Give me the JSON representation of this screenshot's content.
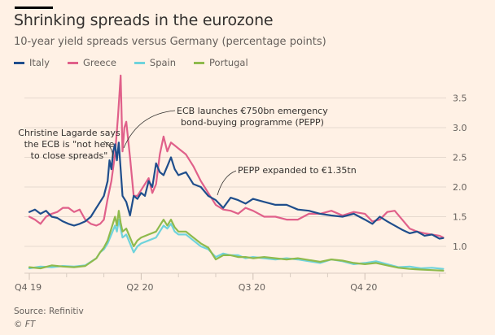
{
  "header": {
    "title": "Shrinking spreads in the eurozone",
    "subtitle": "10-year yield spreads versus Germany (percentage points)"
  },
  "legend": [
    {
      "name": "Italy",
      "color": "#1f4e8c"
    },
    {
      "name": "Greece",
      "color": "#e0608a"
    },
    {
      "name": "Spain",
      "color": "#6fd3dc"
    },
    {
      "name": "Portugal",
      "color": "#8fba4c"
    }
  ],
  "footer": {
    "source": "Source: Refinitiv",
    "copyright": "© FT"
  },
  "chart_data": {
    "type": "line",
    "title": "Shrinking spreads in the eurozone",
    "subtitle": "10-year yield spreads versus Germany (percentage points)",
    "xlabel": "",
    "ylabel": "",
    "x_unit": "months (tick positions)",
    "xlim": [
      -0.05,
      11.15
    ],
    "ylim": [
      0.6,
      3.9
    ],
    "y_ticks": [
      1.0,
      1.5,
      2.0,
      2.5,
      3.0,
      3.5
    ],
    "y_tick_labels": [
      "1.0",
      "1.5",
      "2.0",
      "2.5",
      "3.0",
      "3.5"
    ],
    "y_axis_side": "right",
    "grid": true,
    "legend_position": "top-left",
    "x_major_ticks": [
      {
        "x": 0,
        "label": "Q4 19"
      },
      {
        "x": 3,
        "label": "Q2 20"
      },
      {
        "x": 6,
        "label": "Q3 20"
      },
      {
        "x": 9,
        "label": "Q4 20"
      }
    ],
    "x_minor_ticks": [
      1,
      2,
      4,
      5,
      7,
      8,
      10,
      11
    ],
    "annotations": [
      {
        "text": [
          "Christine Lagarde says",
          "the ECB is \"not here",
          "to close spreads\""
        ],
        "x": 2.28,
        "y": 2.55
      },
      {
        "text": [
          "ECB launches €750bn emergency",
          "bond-buying programme (PEPP)"
        ],
        "x": 2.55,
        "y": 2.55
      },
      {
        "text": [
          "PEPP expanded to €1.35tn"
        ],
        "x": 5.1,
        "y": 1.75
      }
    ],
    "series": [
      {
        "name": "Italy",
        "color": "#1f4e8c",
        "x": [
          0,
          0.15,
          0.3,
          0.45,
          0.6,
          0.75,
          0.9,
          1.05,
          1.2,
          1.35,
          1.5,
          1.65,
          1.8,
          1.9,
          2.0,
          2.1,
          2.15,
          2.2,
          2.25,
          2.3,
          2.35,
          2.4,
          2.45,
          2.5,
          2.6,
          2.7,
          2.8,
          2.9,
          3.0,
          3.1,
          3.2,
          3.3,
          3.4,
          3.5,
          3.6,
          3.7,
          3.8,
          3.9,
          4.0,
          4.2,
          4.4,
          4.6,
          4.8,
          5.0,
          5.2,
          5.4,
          5.6,
          5.8,
          6.0,
          6.3,
          6.6,
          6.9,
          7.2,
          7.5,
          7.8,
          8.1,
          8.4,
          8.7,
          9.0,
          9.2,
          9.4,
          9.6,
          9.8,
          10.0,
          10.2,
          10.4,
          10.6,
          10.8,
          11.0,
          11.1
        ],
        "values": [
          1.58,
          1.62,
          1.55,
          1.6,
          1.5,
          1.48,
          1.42,
          1.38,
          1.35,
          1.38,
          1.42,
          1.5,
          1.65,
          1.75,
          1.85,
          2.1,
          2.45,
          2.3,
          2.6,
          2.72,
          2.45,
          2.75,
          2.3,
          1.85,
          1.75,
          1.52,
          1.85,
          1.8,
          1.9,
          1.85,
          2.1,
          2.0,
          2.4,
          2.25,
          2.2,
          2.35,
          2.5,
          2.3,
          2.2,
          2.25,
          2.05,
          2.0,
          1.85,
          1.78,
          1.65,
          1.82,
          1.78,
          1.72,
          1.8,
          1.75,
          1.7,
          1.7,
          1.62,
          1.6,
          1.55,
          1.52,
          1.5,
          1.55,
          1.45,
          1.38,
          1.5,
          1.42,
          1.35,
          1.28,
          1.22,
          1.25,
          1.18,
          1.2,
          1.13,
          1.14
        ]
      },
      {
        "name": "Greece",
        "color": "#e0608a",
        "x": [
          0,
          0.15,
          0.3,
          0.45,
          0.6,
          0.75,
          0.9,
          1.05,
          1.2,
          1.35,
          1.5,
          1.65,
          1.8,
          1.9,
          2.0,
          2.1,
          2.2,
          2.3,
          2.38,
          2.45,
          2.5,
          2.55,
          2.6,
          2.7,
          2.8,
          2.9,
          3.0,
          3.1,
          3.2,
          3.3,
          3.4,
          3.5,
          3.6,
          3.7,
          3.8,
          3.9,
          4.0,
          4.2,
          4.4,
          4.6,
          4.8,
          5.0,
          5.2,
          5.4,
          5.6,
          5.8,
          6.0,
          6.3,
          6.6,
          6.9,
          7.2,
          7.5,
          7.8,
          8.1,
          8.4,
          8.7,
          9.0,
          9.2,
          9.4,
          9.6,
          9.8,
          10.0,
          10.2,
          10.4,
          10.6,
          10.8,
          11.0,
          11.1
        ],
        "values": [
          1.5,
          1.45,
          1.38,
          1.5,
          1.55,
          1.58,
          1.65,
          1.65,
          1.58,
          1.62,
          1.45,
          1.38,
          1.35,
          1.38,
          1.45,
          1.8,
          2.1,
          2.55,
          3.2,
          3.88,
          2.6,
          3.0,
          3.1,
          2.5,
          1.85,
          1.85,
          1.95,
          2.05,
          2.15,
          1.9,
          2.05,
          2.55,
          2.85,
          2.6,
          2.75,
          2.7,
          2.65,
          2.55,
          2.35,
          2.1,
          1.9,
          1.7,
          1.62,
          1.6,
          1.55,
          1.65,
          1.6,
          1.5,
          1.5,
          1.45,
          1.45,
          1.55,
          1.55,
          1.6,
          1.52,
          1.58,
          1.55,
          1.42,
          1.45,
          1.58,
          1.6,
          1.45,
          1.3,
          1.25,
          1.22,
          1.2,
          1.18,
          1.15
        ]
      },
      {
        "name": "Spain",
        "color": "#6fd3dc",
        "x": [
          0,
          0.3,
          0.6,
          0.9,
          1.2,
          1.5,
          1.8,
          1.9,
          2.0,
          2.1,
          2.2,
          2.3,
          2.35,
          2.4,
          2.45,
          2.5,
          2.6,
          2.7,
          2.8,
          2.9,
          3.0,
          3.2,
          3.4,
          3.6,
          3.7,
          3.8,
          3.9,
          4.0,
          4.2,
          4.4,
          4.6,
          4.8,
          5.0,
          5.2,
          5.4,
          5.6,
          5.8,
          6.0,
          6.3,
          6.6,
          6.9,
          7.2,
          7.5,
          7.8,
          8.1,
          8.4,
          8.7,
          9.0,
          9.3,
          9.6,
          9.9,
          10.2,
          10.5,
          10.8,
          11.1
        ],
        "values": [
          0.63,
          0.66,
          0.65,
          0.67,
          0.66,
          0.68,
          0.8,
          0.9,
          0.95,
          1.05,
          1.2,
          1.35,
          1.25,
          1.45,
          1.3,
          1.15,
          1.2,
          1.05,
          0.9,
          1.0,
          1.05,
          1.1,
          1.15,
          1.35,
          1.3,
          1.38,
          1.25,
          1.2,
          1.2,
          1.1,
          1.0,
          0.95,
          0.82,
          0.88,
          0.85,
          0.85,
          0.8,
          0.82,
          0.8,
          0.78,
          0.8,
          0.78,
          0.75,
          0.72,
          0.78,
          0.75,
          0.7,
          0.72,
          0.75,
          0.7,
          0.65,
          0.66,
          0.63,
          0.64,
          0.62
        ]
      },
      {
        "name": "Portugal",
        "color": "#8fba4c",
        "x": [
          0,
          0.3,
          0.6,
          0.9,
          1.2,
          1.5,
          1.8,
          1.9,
          2.0,
          2.1,
          2.2,
          2.3,
          2.35,
          2.4,
          2.45,
          2.5,
          2.6,
          2.7,
          2.8,
          2.9,
          3.0,
          3.2,
          3.4,
          3.6,
          3.7,
          3.8,
          3.9,
          4.0,
          4.2,
          4.4,
          4.6,
          4.8,
          5.0,
          5.2,
          5.4,
          5.6,
          5.8,
          6.0,
          6.3,
          6.6,
          6.9,
          7.2,
          7.5,
          7.8,
          8.1,
          8.4,
          8.7,
          9.0,
          9.3,
          9.6,
          9.9,
          10.2,
          10.5,
          10.8,
          11.1
        ],
        "values": [
          0.65,
          0.63,
          0.68,
          0.66,
          0.65,
          0.67,
          0.8,
          0.9,
          0.98,
          1.1,
          1.3,
          1.5,
          1.35,
          1.6,
          1.4,
          1.25,
          1.3,
          1.15,
          1.0,
          1.1,
          1.15,
          1.2,
          1.25,
          1.45,
          1.35,
          1.45,
          1.32,
          1.25,
          1.25,
          1.15,
          1.05,
          0.98,
          0.78,
          0.85,
          0.85,
          0.82,
          0.82,
          0.8,
          0.82,
          0.8,
          0.78,
          0.8,
          0.77,
          0.74,
          0.78,
          0.76,
          0.72,
          0.7,
          0.72,
          0.68,
          0.64,
          0.62,
          0.61,
          0.6,
          0.59
        ]
      }
    ]
  }
}
